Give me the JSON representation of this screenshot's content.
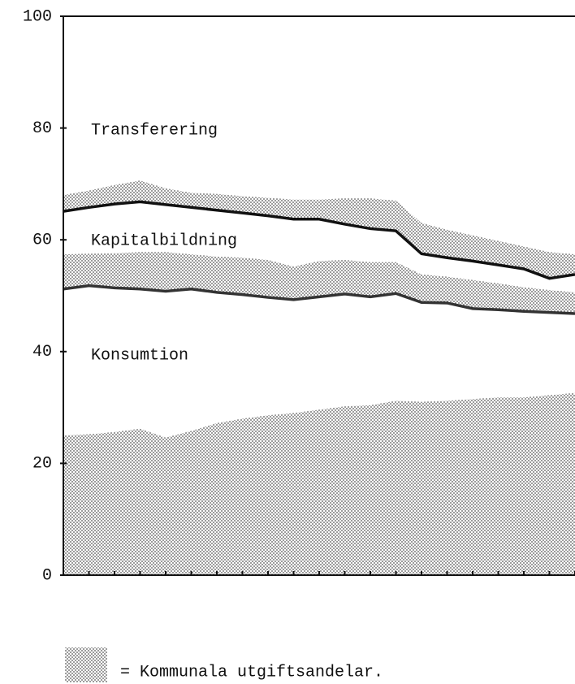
{
  "chart_data": {
    "type": "line",
    "categories": [
      null,
      null,
      null,
      null,
      null,
      null,
      null,
      null,
      null,
      null,
      null,
      null,
      null,
      null,
      null,
      null,
      null,
      null,
      null,
      null,
      null
    ],
    "ylim": [
      0,
      100
    ],
    "yticks": [
      0,
      20,
      40,
      60,
      80,
      100
    ],
    "series": [
      {
        "name": "Konsumtion",
        "color": "#333333",
        "values": [
          51.2,
          51.8,
          51.4,
          51.2,
          50.8,
          51.2,
          50.6,
          50.2,
          49.7,
          49.3,
          49.8,
          50.3,
          49.8,
          50.4,
          48.8,
          48.7,
          47.7,
          47.5,
          47.2,
          47.0,
          46.8
        ]
      },
      {
        "name": "Kapitalbildning",
        "color": "#111111",
        "values": [
          65.1,
          65.8,
          66.4,
          66.8,
          66.3,
          65.8,
          65.3,
          64.8,
          64.3,
          63.7,
          63.7,
          62.8,
          62.0,
          61.6,
          57.5,
          56.8,
          56.2,
          55.5,
          54.8,
          53.1,
          53.8
        ]
      }
    ],
    "annotations": [
      "Transferering"
    ],
    "municipal_share": {
      "label": "= Kommunala utgiftsandelar.",
      "tops": [
        [
          25.0,
          25.2,
          25.6,
          26.2,
          24.6,
          25.8,
          27.2,
          28.0,
          28.6,
          29.0,
          29.6,
          30.2,
          30.4,
          31.2,
          31.0,
          31.2,
          31.5,
          31.8,
          31.8,
          32.2,
          32.6
        ],
        [
          57.4,
          57.5,
          57.6,
          57.8,
          57.8,
          57.4,
          57.0,
          56.8,
          56.4,
          55.2,
          56.2,
          56.4,
          56.0,
          56.0,
          53.8,
          53.4,
          52.8,
          52.2,
          51.5,
          51.0,
          50.6
        ],
        [
          68.0,
          68.8,
          69.8,
          70.6,
          69.2,
          68.4,
          68.2,
          67.8,
          67.5,
          67.2,
          67.2,
          67.4,
          67.4,
          67.0,
          63.0,
          61.8,
          60.8,
          59.8,
          58.8,
          57.8,
          57.4
        ]
      ]
    }
  }
}
